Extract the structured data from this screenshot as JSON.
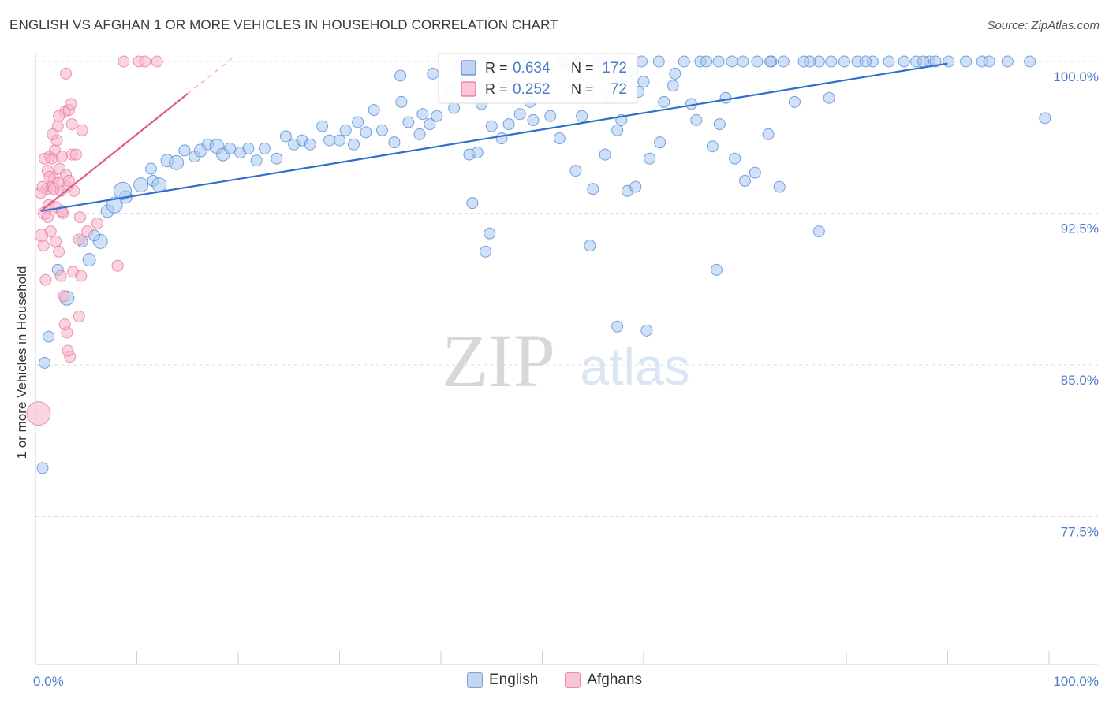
{
  "title": "ENGLISH VS AFGHAN 1 OR MORE VEHICLES IN HOUSEHOLD CORRELATION CHART",
  "source": "Source: ZipAtlas.com",
  "watermark": {
    "zip": "ZIP",
    "atlas": "atlas"
  },
  "colors": {
    "blue": "#4a86d6",
    "blue_fill": "#a9c6ee",
    "blue_line": "#2f6fc9",
    "pink": "#e8739a",
    "pink_fill": "#f5b3c7",
    "pink_line": "#e05a88",
    "axis_label": "#4a7cc9",
    "grid": "#dddddd"
  },
  "chart_data": {
    "type": "scatter",
    "xlabel": "",
    "ylabel": "1 or more Vehicles in Household",
    "xlim": [
      0,
      100
    ],
    "ylim": [
      70.0,
      101.5
    ],
    "x_tick_labels": [
      {
        "value": 0,
        "label": "0.0%"
      },
      {
        "value": 100,
        "label": "100.0%"
      }
    ],
    "y_ticks": [
      {
        "value": 100.0,
        "label": "100.0%"
      },
      {
        "value": 92.5,
        "label": "92.5%"
      },
      {
        "value": 85.0,
        "label": "85.0%"
      },
      {
        "value": 77.5,
        "label": "77.5%"
      }
    ],
    "legend_box": {
      "rows": [
        {
          "series": "English",
          "r_label": "R =",
          "r_value": "0.634",
          "n_label": "N =",
          "n_value": "172"
        },
        {
          "series": "Afghans",
          "r_label": "R =",
          "r_value": "0.252",
          "n_label": "N =",
          "n_value": "72"
        }
      ]
    },
    "series": [
      {
        "name": "English",
        "trend": {
          "x": [
            0.5,
            90.0
          ],
          "y": [
            92.6,
            99.9
          ]
        },
        "points": [
          [
            0.7,
            79.9,
            14
          ],
          [
            0.9,
            85.1,
            14
          ],
          [
            1.3,
            86.4,
            14
          ],
          [
            3.1,
            88.3,
            18
          ],
          [
            2.2,
            89.7,
            14
          ],
          [
            5.3,
            90.2,
            16
          ],
          [
            6.4,
            91.1,
            18
          ],
          [
            4.6,
            91.1,
            14
          ],
          [
            5.8,
            91.4,
            14
          ],
          [
            7.1,
            92.6,
            16
          ],
          [
            7.8,
            92.9,
            20
          ],
          [
            8.9,
            93.3,
            16
          ],
          [
            8.6,
            93.6,
            22
          ],
          [
            10.4,
            93.9,
            18
          ],
          [
            11.6,
            94.1,
            14
          ],
          [
            12.2,
            93.9,
            18
          ],
          [
            11.4,
            94.7,
            14
          ],
          [
            13.0,
            95.1,
            16
          ],
          [
            13.9,
            95.0,
            18
          ],
          [
            14.7,
            95.6,
            14
          ],
          [
            15.7,
            95.3,
            14
          ],
          [
            16.3,
            95.6,
            16
          ],
          [
            17.0,
            95.9,
            14
          ],
          [
            17.9,
            95.8,
            18
          ],
          [
            18.5,
            95.4,
            16
          ],
          [
            19.2,
            95.7,
            14
          ],
          [
            20.2,
            95.5,
            14
          ],
          [
            21.0,
            95.7,
            14
          ],
          [
            21.8,
            95.1,
            14
          ],
          [
            22.6,
            95.7,
            14
          ],
          [
            23.8,
            95.2,
            14
          ],
          [
            24.7,
            96.3,
            14
          ],
          [
            25.5,
            95.9,
            14
          ],
          [
            26.3,
            96.1,
            14
          ],
          [
            27.1,
            95.9,
            14
          ],
          [
            28.3,
            96.8,
            14
          ],
          [
            29.0,
            96.1,
            14
          ],
          [
            30.0,
            96.1,
            14
          ],
          [
            30.6,
            96.6,
            14
          ],
          [
            31.4,
            95.9,
            14
          ],
          [
            31.8,
            97.0,
            14
          ],
          [
            32.6,
            96.5,
            14
          ],
          [
            33.4,
            97.6,
            14
          ],
          [
            34.2,
            96.6,
            14
          ],
          [
            35.4,
            96.0,
            14
          ],
          [
            36.1,
            98.0,
            14
          ],
          [
            36.8,
            97.0,
            14
          ],
          [
            38.2,
            97.4,
            14
          ],
          [
            37.9,
            96.4,
            14
          ],
          [
            38.9,
            96.9,
            14
          ],
          [
            39.6,
            97.3,
            14
          ],
          [
            40.9,
            98.6,
            14
          ],
          [
            41.3,
            97.7,
            14
          ],
          [
            42.8,
            95.4,
            14
          ],
          [
            43.6,
            95.5,
            14
          ],
          [
            44.0,
            97.9,
            14
          ],
          [
            45.0,
            96.8,
            14
          ],
          [
            46.0,
            96.2,
            14
          ],
          [
            46.7,
            96.9,
            14
          ],
          [
            47.8,
            97.4,
            14
          ],
          [
            48.8,
            98.0,
            14
          ],
          [
            49.1,
            97.1,
            14
          ],
          [
            50.8,
            97.3,
            14
          ],
          [
            51.7,
            96.2,
            14
          ],
          [
            53.3,
            94.6,
            14
          ],
          [
            53.9,
            97.3,
            14
          ],
          [
            55.0,
            93.7,
            14
          ],
          [
            56.2,
            95.4,
            14
          ],
          [
            57.4,
            96.6,
            14
          ],
          [
            57.8,
            97.1,
            14
          ],
          [
            58.4,
            93.6,
            14
          ],
          [
            59.2,
            93.8,
            14
          ],
          [
            60.0,
            99.0,
            14
          ],
          [
            60.6,
            95.2,
            14
          ],
          [
            61.6,
            96.0,
            14
          ],
          [
            62.9,
            98.8,
            14
          ],
          [
            64.7,
            97.9,
            14
          ],
          [
            65.2,
            97.1,
            14
          ],
          [
            66.8,
            95.8,
            14
          ],
          [
            67.5,
            96.9,
            14
          ],
          [
            68.1,
            98.2,
            14
          ],
          [
            69.0,
            95.2,
            14
          ],
          [
            70.0,
            94.1,
            14
          ],
          [
            71.0,
            94.5,
            14
          ],
          [
            72.3,
            96.4,
            14
          ],
          [
            73.4,
            93.8,
            14
          ],
          [
            74.9,
            98.0,
            14
          ],
          [
            77.3,
            91.6,
            14
          ],
          [
            78.3,
            98.2,
            14
          ],
          [
            43.1,
            93.0,
            14
          ],
          [
            44.8,
            91.5,
            14
          ],
          [
            44.4,
            90.6,
            14
          ],
          [
            54.7,
            90.9,
            14
          ],
          [
            67.2,
            89.7,
            14
          ],
          [
            57.4,
            86.9,
            14
          ],
          [
            60.3,
            86.7,
            14
          ],
          [
            59.5,
            98.5,
            14
          ],
          [
            46.7,
            98.8,
            14
          ],
          [
            49.8,
            98.7,
            14
          ],
          [
            52.5,
            99.8,
            14
          ],
          [
            54.7,
            98.6,
            14
          ],
          [
            56.5,
            98.3,
            14
          ],
          [
            58.6,
            99.5,
            14
          ],
          [
            62.0,
            98.0,
            14
          ],
          [
            63.1,
            99.4,
            14
          ],
          [
            39.2,
            99.4,
            14
          ],
          [
            36.0,
            99.3,
            14
          ],
          [
            41.9,
            99.8,
            14
          ],
          [
            52.0,
            100.0,
            14
          ],
          [
            53.6,
            100.0,
            14
          ],
          [
            55.5,
            100.0,
            14
          ],
          [
            57.2,
            100.0,
            14
          ],
          [
            59.8,
            100.0,
            14
          ],
          [
            61.5,
            100.0,
            14
          ],
          [
            64.0,
            100.0,
            14
          ],
          [
            65.6,
            100.0,
            14
          ],
          [
            66.2,
            100.0,
            14
          ],
          [
            68.7,
            100.0,
            14
          ],
          [
            69.8,
            100.0,
            14
          ],
          [
            71.2,
            100.0,
            14
          ],
          [
            72.6,
            100.0,
            14
          ],
          [
            73.8,
            100.0,
            14
          ],
          [
            75.8,
            100.0,
            14
          ],
          [
            77.3,
            100.0,
            14
          ],
          [
            78.5,
            100.0,
            14
          ],
          [
            79.8,
            100.0,
            14
          ],
          [
            81.1,
            100.0,
            14
          ],
          [
            82.6,
            100.0,
            14
          ],
          [
            84.2,
            100.0,
            14
          ],
          [
            85.7,
            100.0,
            14
          ],
          [
            86.9,
            100.0,
            14
          ],
          [
            88.2,
            100.0,
            14
          ],
          [
            88.8,
            100.0,
            14
          ],
          [
            90.1,
            100.0,
            14
          ],
          [
            91.8,
            100.0,
            14
          ],
          [
            93.4,
            100.0,
            14
          ],
          [
            94.1,
            100.0,
            14
          ],
          [
            95.9,
            100.0,
            14
          ],
          [
            98.1,
            100.0,
            14
          ],
          [
            99.6,
            97.2,
            14
          ],
          [
            72.5,
            100.0,
            14
          ],
          [
            67.4,
            100.0,
            14
          ],
          [
            87.6,
            100.0,
            14
          ],
          [
            76.4,
            100.0,
            14
          ],
          [
            81.9,
            100.0,
            14
          ]
        ]
      },
      {
        "name": "Afghans",
        "trend": {
          "x": [
            0.5,
            15.0
          ],
          "y": [
            92.6,
            98.4
          ]
        },
        "trend_dashed": {
          "x": [
            15.0,
            19.5
          ],
          "y": [
            98.4,
            100.2
          ]
        },
        "points": [
          [
            0.3,
            82.6,
            30
          ],
          [
            0.6,
            91.4,
            16
          ],
          [
            0.8,
            90.9,
            14
          ],
          [
            0.9,
            92.5,
            16
          ],
          [
            1.1,
            93.7,
            14
          ],
          [
            1.2,
            94.6,
            14
          ],
          [
            1.4,
            95.3,
            14
          ],
          [
            1.6,
            93.8,
            14
          ],
          [
            1.8,
            94.2,
            14
          ],
          [
            1.9,
            95.6,
            14
          ],
          [
            2.1,
            96.1,
            14
          ],
          [
            2.2,
            96.8,
            14
          ],
          [
            2.4,
            94.7,
            14
          ],
          [
            2.5,
            93.6,
            14
          ],
          [
            2.6,
            95.3,
            14
          ],
          [
            2.7,
            92.5,
            14
          ],
          [
            2.9,
            97.5,
            14
          ],
          [
            3.0,
            94.4,
            14
          ],
          [
            3.1,
            93.8,
            14
          ],
          [
            3.3,
            97.6,
            14
          ],
          [
            3.5,
            97.9,
            14
          ],
          [
            3.6,
            95.4,
            14
          ],
          [
            3.8,
            93.6,
            14
          ],
          [
            4.0,
            95.4,
            14
          ],
          [
            4.3,
            91.2,
            14
          ],
          [
            4.6,
            96.6,
            14
          ],
          [
            1.5,
            91.6,
            14
          ],
          [
            2.0,
            91.1,
            14
          ],
          [
            2.3,
            90.6,
            14
          ],
          [
            1.0,
            89.2,
            14
          ],
          [
            2.5,
            89.4,
            14
          ],
          [
            3.7,
            89.6,
            14
          ],
          [
            4.5,
            89.4,
            14
          ],
          [
            3.1,
            86.6,
            14
          ],
          [
            3.4,
            85.4,
            14
          ],
          [
            3.2,
            85.7,
            14
          ],
          [
            8.1,
            89.9,
            14
          ],
          [
            6.1,
            92.0,
            14
          ],
          [
            2.8,
            88.4,
            14
          ],
          [
            4.3,
            87.4,
            14
          ],
          [
            2.9,
            87.0,
            14
          ],
          [
            3.0,
            99.4,
            14
          ],
          [
            8.7,
            100.0,
            14
          ],
          [
            10.2,
            100.0,
            14
          ],
          [
            10.8,
            100.0,
            14
          ],
          [
            12.0,
            100.0,
            14
          ],
          [
            1.3,
            92.9,
            14
          ],
          [
            1.8,
            93.7,
            14
          ],
          [
            0.5,
            93.5,
            14
          ],
          [
            2.3,
            94.0,
            14
          ],
          [
            1.6,
            95.2,
            14
          ],
          [
            0.9,
            95.2,
            14
          ],
          [
            1.2,
            92.3,
            14
          ],
          [
            2.0,
            92.8,
            14
          ],
          [
            0.7,
            93.8,
            14
          ],
          [
            1.4,
            94.3,
            14
          ],
          [
            2.6,
            92.6,
            14
          ],
          [
            3.3,
            94.1,
            14
          ],
          [
            4.4,
            92.3,
            14
          ],
          [
            5.1,
            91.6,
            14
          ],
          [
            3.6,
            96.9,
            14
          ],
          [
            2.3,
            97.3,
            14
          ],
          [
            1.7,
            96.4,
            14
          ]
        ]
      }
    ]
  }
}
